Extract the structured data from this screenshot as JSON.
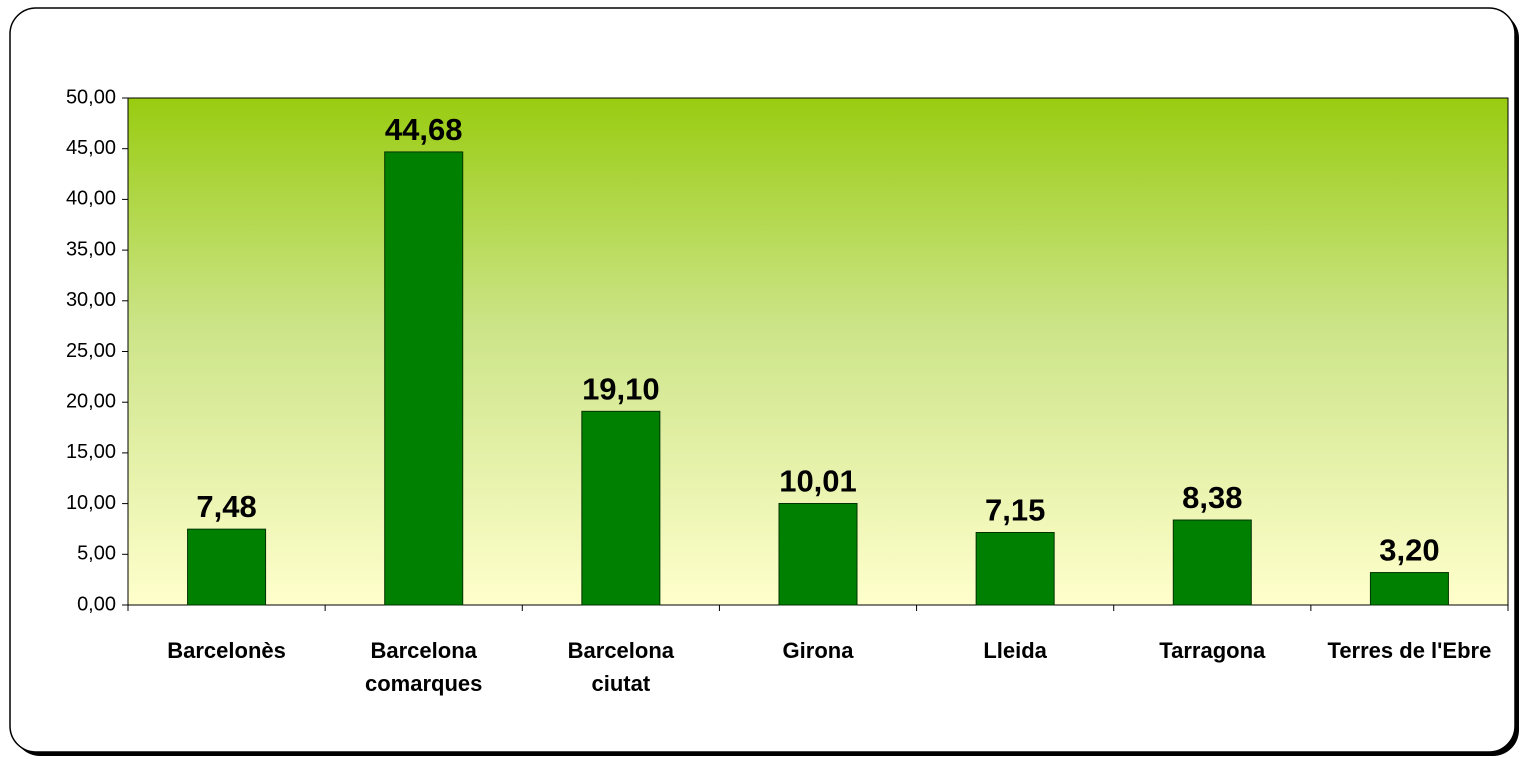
{
  "chart_data": {
    "type": "bar",
    "categories": [
      "Barcelonès",
      "Barcelona comarques",
      "Barcelona ciutat",
      "Girona",
      "Lleida",
      "Tarragona",
      "Terres de l'Ebre"
    ],
    "values": [
      7.48,
      44.68,
      19.1,
      10.01,
      7.15,
      8.38,
      3.2
    ],
    "value_labels": [
      "7,48",
      "44,68",
      "19,10",
      "10,01",
      "7,15",
      "8,38",
      "3,20"
    ],
    "color": "#008000",
    "ylim": [
      0,
      50
    ],
    "yticks": [
      {
        "value": 0,
        "label": "0,00"
      },
      {
        "value": 5,
        "label": "5,00"
      },
      {
        "value": 10,
        "label": "10,00"
      },
      {
        "value": 15,
        "label": "15,00"
      },
      {
        "value": 20,
        "label": "20,00"
      },
      {
        "value": 25,
        "label": "25,00"
      },
      {
        "value": 30,
        "label": "30,00"
      },
      {
        "value": 35,
        "label": "35,00"
      },
      {
        "value": 40,
        "label": "40,00"
      },
      {
        "value": 45,
        "label": "45,00"
      },
      {
        "value": 50,
        "label": "50,00"
      }
    ]
  }
}
